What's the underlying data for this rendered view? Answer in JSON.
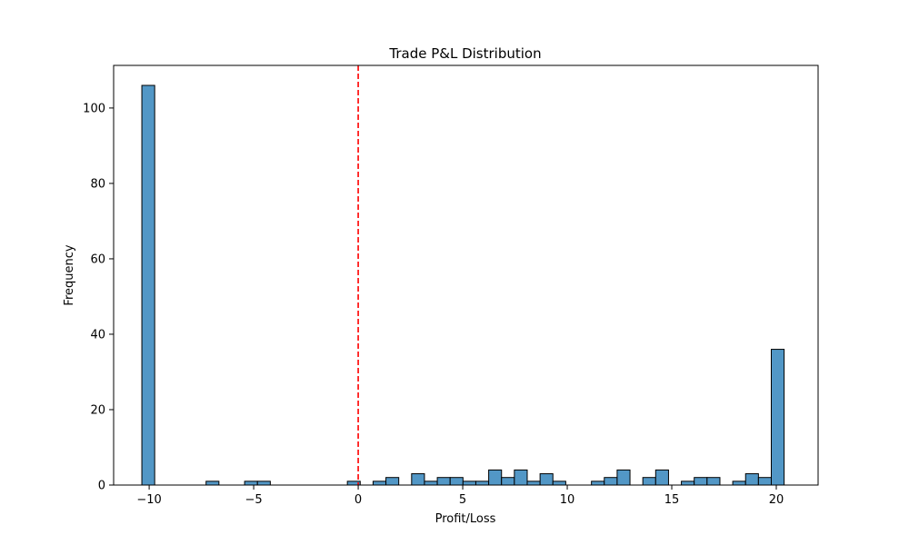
{
  "chart_data": {
    "type": "bar",
    "title": "Trade P&L Distribution",
    "xlabel": "Profit/Loss",
    "ylabel": "Frequency",
    "xlim": [
      -11.7,
      22.0
    ],
    "ylim": [
      0,
      111.3
    ],
    "xticks": [
      -10,
      -5,
      0,
      5,
      10,
      15,
      20
    ],
    "yticks": [
      0,
      20,
      40,
      60,
      80,
      100
    ],
    "grid": false,
    "bar_color": "#5297c6",
    "edge_color": "#000000",
    "reference_line": {
      "x": 0,
      "color": "#ff0000",
      "style": "dashed"
    },
    "bins": {
      "start": -10.35,
      "width": 0.6145,
      "counts": [
        106,
        0,
        0,
        0,
        0,
        1,
        0,
        0,
        1,
        1,
        0,
        0,
        0,
        0,
        0,
        0,
        1,
        0,
        1,
        2,
        0,
        3,
        1,
        2,
        2,
        1,
        1,
        4,
        2,
        4,
        1,
        3,
        1,
        0,
        0,
        1,
        2,
        4,
        0,
        2,
        4,
        0,
        1,
        2,
        2,
        0,
        1,
        3,
        2,
        36
      ]
    }
  }
}
